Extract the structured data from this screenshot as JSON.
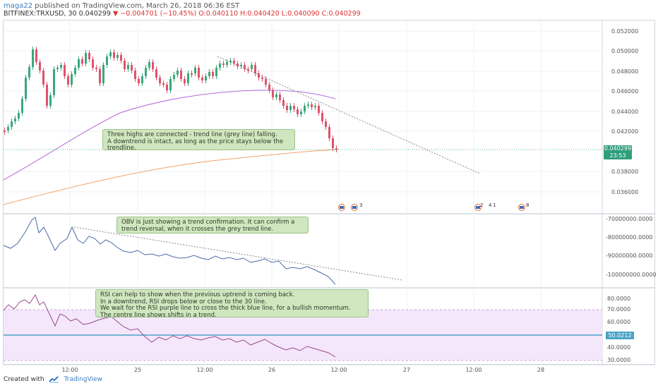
{
  "header": {
    "user": "maga22",
    "published": "published on TradingView.com, March 26, 2018 06:36 EST",
    "symbol": "BITFINEX:TRXUSD, 30",
    "last": "0.040299",
    "change": "▼ −0.004701 (−10.45%)",
    "ohlc": "O:0.040110 H:0.040420 L:0.040090 C:0.040299"
  },
  "price_axis": [
    "0.052000",
    "0.050000",
    "0.048000",
    "0.046000",
    "0.044000",
    "0.042000",
    "0.038000",
    "0.036000"
  ],
  "price_badge": {
    "price": "0.040299",
    "countdown": "23:53"
  },
  "obv_axis": [
    "-70000000.0000",
    "-80000000.0000",
    "-90000000.0000",
    "-100000000.0000"
  ],
  "rsi_axis": [
    "80.0000",
    "70.0000",
    "60.0000",
    "40.0000",
    "30.0000"
  ],
  "rsi_badge": "50.0212",
  "x_axis": [
    "12:00",
    "25",
    "12:00",
    "26",
    "12:00",
    "27",
    "12:00",
    "28"
  ],
  "notes": {
    "trend": "Three highs are connected - trend line (grey line) falling.\nA downtrend is intact, as long as the price stays below the trendline.",
    "obv": "OBV is just showing a trend confirmation. It can confirm a trend reversal, when it crosses the grey trend line.",
    "rsi": "RSI can help to show when the previous uptrend is coming back.\nIn a downtrend, RSI drops below or close to the 30 line.\nWe wait for the RSI purple line to cross the thick blue line, for a bullish momentum.\nThe centre line shows shifts in a trend."
  },
  "events": [
    "3",
    "2",
    "4",
    "1",
    "8"
  ],
  "footer": {
    "created": "Created with",
    "brand": "TradingView"
  },
  "colors": {
    "up": "#3aa87a",
    "down": "#e0526b",
    "sma_purple": "#b36bd9",
    "sma_orange": "#f0a36b",
    "obv": "#4a6aa8",
    "rsi": "#9a4a8c"
  }
}
